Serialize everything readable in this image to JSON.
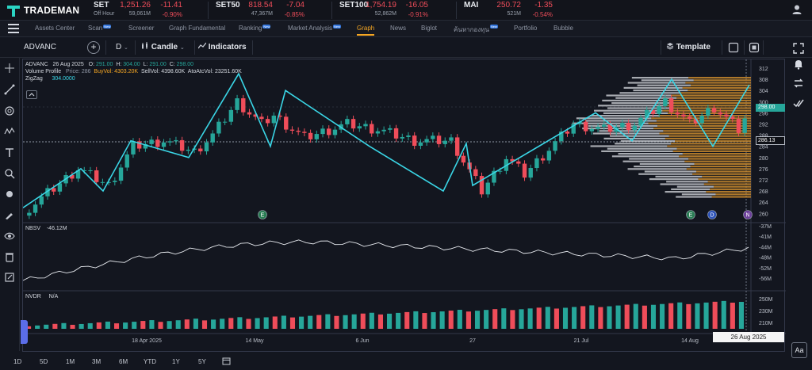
{
  "app": {
    "name": "TRADEMAN"
  },
  "tickers": [
    {
      "name": "SET",
      "price": "1,251.26",
      "change": "-11.41",
      "sub": "Off Hour",
      "volume": "59,061M",
      "pct": "-0.90%"
    },
    {
      "name": "SET50",
      "price": "818.54",
      "change": "-7.04",
      "sub": "",
      "volume": "47,367M",
      "pct": "-0.85%"
    },
    {
      "name": "SET100",
      "price": "1,754.19",
      "change": "-16.05",
      "sub": "",
      "volume": "52,862M",
      "pct": "-0.91%"
    },
    {
      "name": "MAI",
      "price": "250.72",
      "change": "-1.35",
      "sub": "",
      "volume": "521M",
      "pct": "-0.54%"
    }
  ],
  "nav": {
    "items": [
      "Assets Center",
      "Scan",
      "Screener",
      "Graph Fundamental",
      "Ranking",
      "Market Analysis",
      "Graph",
      "News",
      "Biglot",
      "ค้นหากองทุน",
      "Portfolio",
      "Bubble"
    ],
    "new_tag": "New",
    "active": "Graph"
  },
  "toolbar": {
    "symbol": "ADVANC",
    "add": "+",
    "timeframe": "D",
    "chart_type": "Candle",
    "indicators": "Indicators",
    "template": "Template"
  },
  "legend": {
    "symbol": "ADVANC",
    "date": "26 Aug 2025",
    "o_label": "O:",
    "o": "291.00",
    "h_label": "H:",
    "h": "304.00",
    "l_label": "L:",
    "l": "291.00",
    "c_label": "C:",
    "c": "298.00",
    "vp_label": "Volume Profile",
    "vp_price": "Price: 286",
    "vp_buy": "BuyVol: 4303.20K",
    "vp_sell": "SellVol: 4398.60K",
    "vp_ato": "AtoAtcVol: 23251.60K",
    "zz_label": "ZigZag",
    "zz_value": "304.0000",
    "nbsv_label": "NBSV",
    "nbsv_value": "-46.12M",
    "nvdr_label": "NVDR",
    "nvdr_value": "N/A"
  },
  "price_axis": [
    "312",
    "308",
    "304",
    "300",
    "296",
    "292",
    "288",
    "284",
    "280",
    "276",
    "272",
    "268",
    "264",
    "260"
  ],
  "price_tag": "298.00",
  "cursor_tag": "286.13",
  "nbsv_axis": [
    "-37M",
    "-41M",
    "-44M",
    "-48M",
    "-52M",
    "-56M"
  ],
  "nvdr_axis": [
    "250M",
    "230M",
    "210M"
  ],
  "date_axis": [
    "18 Apr 2025",
    "14 May",
    "6 Jun",
    "27",
    "21 Jul",
    "14 Aug"
  ],
  "date_tag": "26 Aug 2025",
  "event_markers": [
    "E",
    "E",
    "D",
    "N"
  ],
  "timeframes": [
    "1D",
    "5D",
    "1M",
    "3M",
    "6M",
    "YTD",
    "1Y",
    "5Y"
  ],
  "font_btn": "Aa",
  "colors": {
    "up": "#26a69a",
    "down": "#ef4d5a",
    "zigzag": "#3ad6e6",
    "accent": "#f5a623",
    "vp_sell": "#c98a2e"
  }
}
